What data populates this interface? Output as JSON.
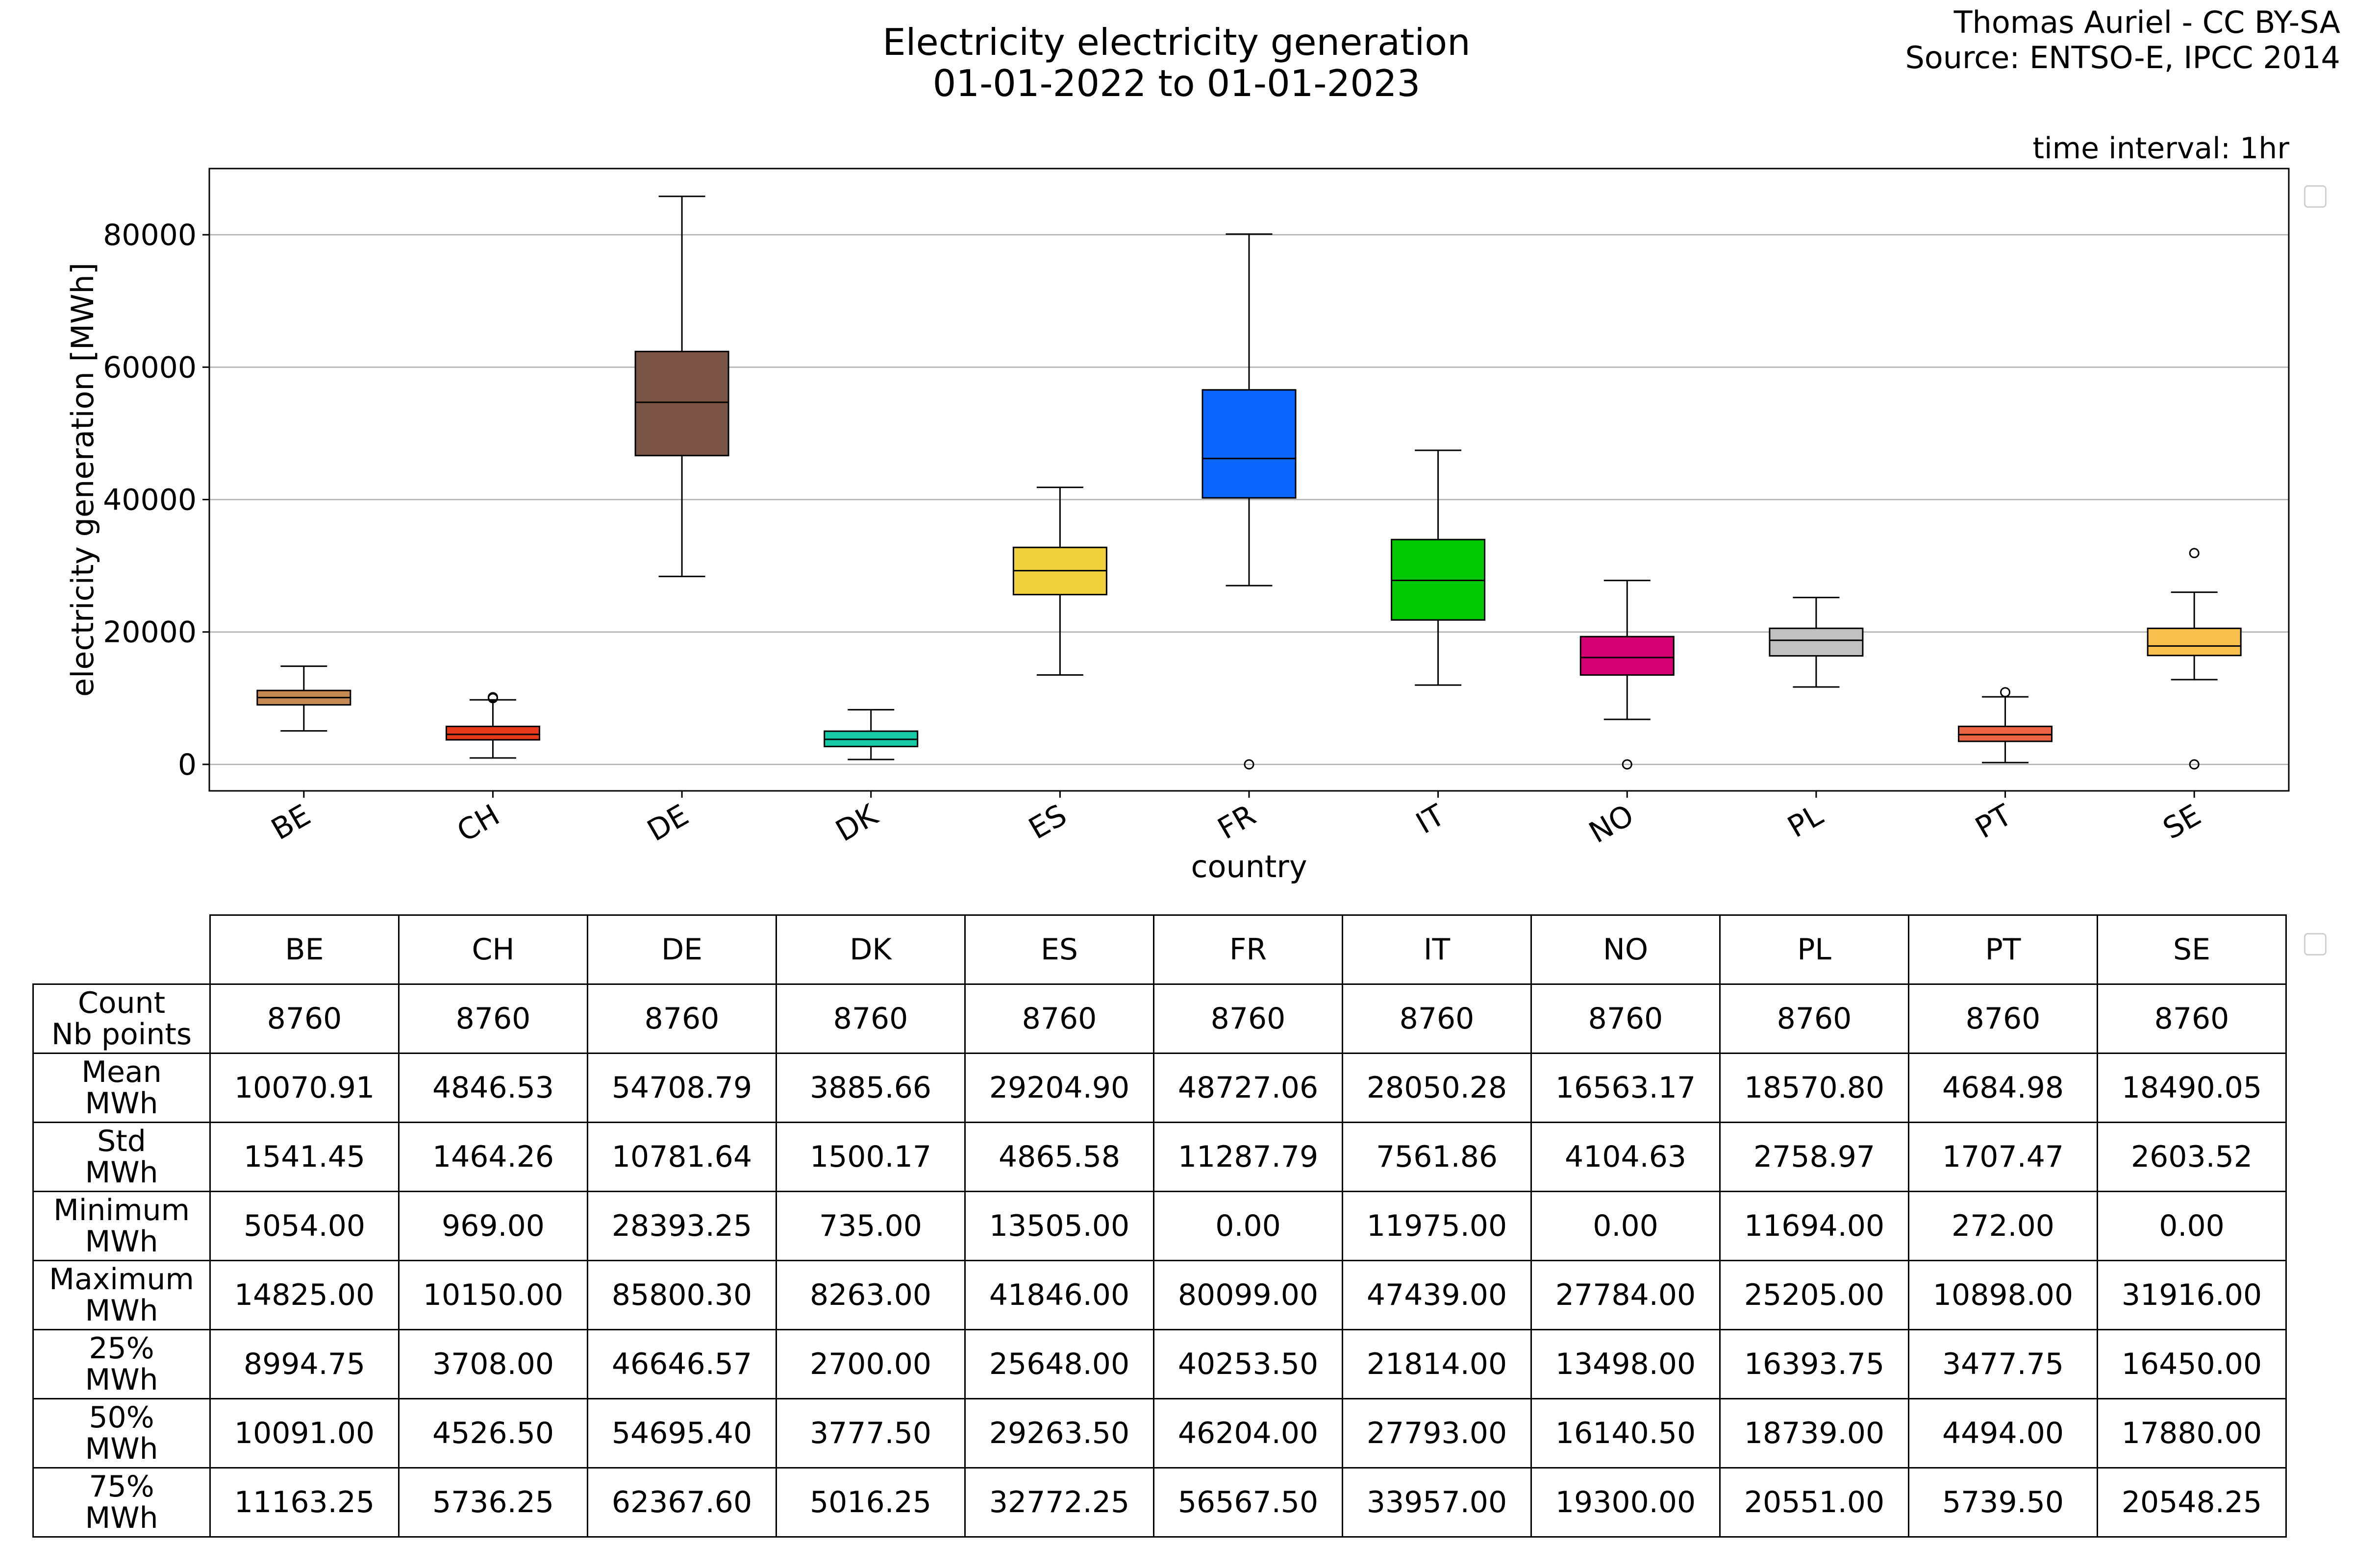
{
  "title_line1": "Electricity electricity generation",
  "title_line2": "01-01-2022 to 01-01-2023",
  "credit_line1": "Thomas Auriel - CC BY-SA",
  "credit_line2": "Source: ENTSO-E, IPCC 2014",
  "time_interval": "time interval: 1hr",
  "chart_data": {
    "type": "box",
    "title": "Electricity electricity generation 01-01-2022 to 01-01-2023",
    "xlabel": "country",
    "ylabel": "electricity generation [MWh]",
    "ylim": [
      -4000,
      90000
    ],
    "yticks": [
      0,
      20000,
      40000,
      60000,
      80000
    ],
    "ytick_labels": [
      "0",
      "20000",
      "40000",
      "60000",
      "80000"
    ],
    "grid": "horizontal",
    "categories": [
      "BE",
      "CH",
      "DE",
      "DK",
      "ES",
      "FR",
      "IT",
      "NO",
      "PL",
      "PT",
      "SE"
    ],
    "colors": [
      "#c68a52",
      "#e83a1a",
      "#7a5445",
      "#18c9a5",
      "#f2d13e",
      "#0a66ff",
      "#00c800",
      "#d4006f",
      "#c0c0c0",
      "#ec6444",
      "#f9c04c"
    ],
    "boxes": [
      {
        "q1": 8994.75,
        "median": 10091.0,
        "q3": 11163.25,
        "whisker_low": 5054.0,
        "whisker_high": 14825.0,
        "outliers": []
      },
      {
        "q1": 3708.0,
        "median": 4526.5,
        "q3": 5736.25,
        "whisker_low": 969.0,
        "whisker_high": 9750.0,
        "outliers": [
          10000.0,
          10150.0
        ]
      },
      {
        "q1": 46646.57,
        "median": 54695.4,
        "q3": 62367.6,
        "whisker_low": 28393.25,
        "whisker_high": 85800.3,
        "outliers": []
      },
      {
        "q1": 2700.0,
        "median": 3777.5,
        "q3": 5016.25,
        "whisker_low": 735.0,
        "whisker_high": 8263.0,
        "outliers": []
      },
      {
        "q1": 25648.0,
        "median": 29263.5,
        "q3": 32772.25,
        "whisker_low": 13505.0,
        "whisker_high": 41846.0,
        "outliers": []
      },
      {
        "q1": 40253.5,
        "median": 46204.0,
        "q3": 56567.5,
        "whisker_low": 27000.0,
        "whisker_high": 80099.0,
        "outliers": [
          0.0
        ]
      },
      {
        "q1": 21814.0,
        "median": 27793.0,
        "q3": 33957.0,
        "whisker_low": 11975.0,
        "whisker_high": 47439.0,
        "outliers": []
      },
      {
        "q1": 13498.0,
        "median": 16140.5,
        "q3": 19300.0,
        "whisker_low": 6800.0,
        "whisker_high": 27784.0,
        "outliers": [
          0.0
        ]
      },
      {
        "q1": 16393.75,
        "median": 18739.0,
        "q3": 20551.0,
        "whisker_low": 11694.0,
        "whisker_high": 25205.0,
        "outliers": []
      },
      {
        "q1": 3477.75,
        "median": 4494.0,
        "q3": 5739.5,
        "whisker_low": 272.0,
        "whisker_high": 10200.0,
        "outliers": [
          10898.0
        ]
      },
      {
        "q1": 16450.0,
        "median": 17880.0,
        "q3": 20548.25,
        "whisker_low": 12800.0,
        "whisker_high": 26000.0,
        "outliers": [
          31916.0,
          0.0
        ]
      }
    ]
  },
  "table": {
    "columns": [
      "BE",
      "CH",
      "DE",
      "DK",
      "ES",
      "FR",
      "IT",
      "NO",
      "PL",
      "PT",
      "SE"
    ],
    "rows": [
      {
        "label1": "Count",
        "label2": "Nb points",
        "values": [
          "8760",
          "8760",
          "8760",
          "8760",
          "8760",
          "8760",
          "8760",
          "8760",
          "8760",
          "8760",
          "8760"
        ]
      },
      {
        "label1": "Mean",
        "label2": "MWh",
        "values": [
          "10070.91",
          "4846.53",
          "54708.79",
          "3885.66",
          "29204.90",
          "48727.06",
          "28050.28",
          "16563.17",
          "18570.80",
          "4684.98",
          "18490.05"
        ]
      },
      {
        "label1": "Std",
        "label2": "MWh",
        "values": [
          "1541.45",
          "1464.26",
          "10781.64",
          "1500.17",
          "4865.58",
          "11287.79",
          "7561.86",
          "4104.63",
          "2758.97",
          "1707.47",
          "2603.52"
        ]
      },
      {
        "label1": "Minimum",
        "label2": "MWh",
        "values": [
          "5054.00",
          "969.00",
          "28393.25",
          "735.00",
          "13505.00",
          "0.00",
          "11975.00",
          "0.00",
          "11694.00",
          "272.00",
          "0.00"
        ]
      },
      {
        "label1": "Maximum",
        "label2": "MWh",
        "values": [
          "14825.00",
          "10150.00",
          "85800.30",
          "8263.00",
          "41846.00",
          "80099.00",
          "47439.00",
          "27784.00",
          "25205.00",
          "10898.00",
          "31916.00"
        ]
      },
      {
        "label1": "25%",
        "label2": "MWh",
        "values": [
          "8994.75",
          "3708.00",
          "46646.57",
          "2700.00",
          "25648.00",
          "40253.50",
          "21814.00",
          "13498.00",
          "16393.75",
          "3477.75",
          "16450.00"
        ]
      },
      {
        "label1": "50%",
        "label2": "MWh",
        "values": [
          "10091.00",
          "4526.50",
          "54695.40",
          "3777.50",
          "29263.50",
          "46204.00",
          "27793.00",
          "16140.50",
          "18739.00",
          "4494.00",
          "17880.00"
        ]
      },
      {
        "label1": "75%",
        "label2": "MWh",
        "values": [
          "11163.25",
          "5736.25",
          "62367.60",
          "5016.25",
          "32772.25",
          "56567.50",
          "33957.00",
          "19300.00",
          "20551.00",
          "5739.50",
          "20548.25"
        ]
      }
    ]
  }
}
